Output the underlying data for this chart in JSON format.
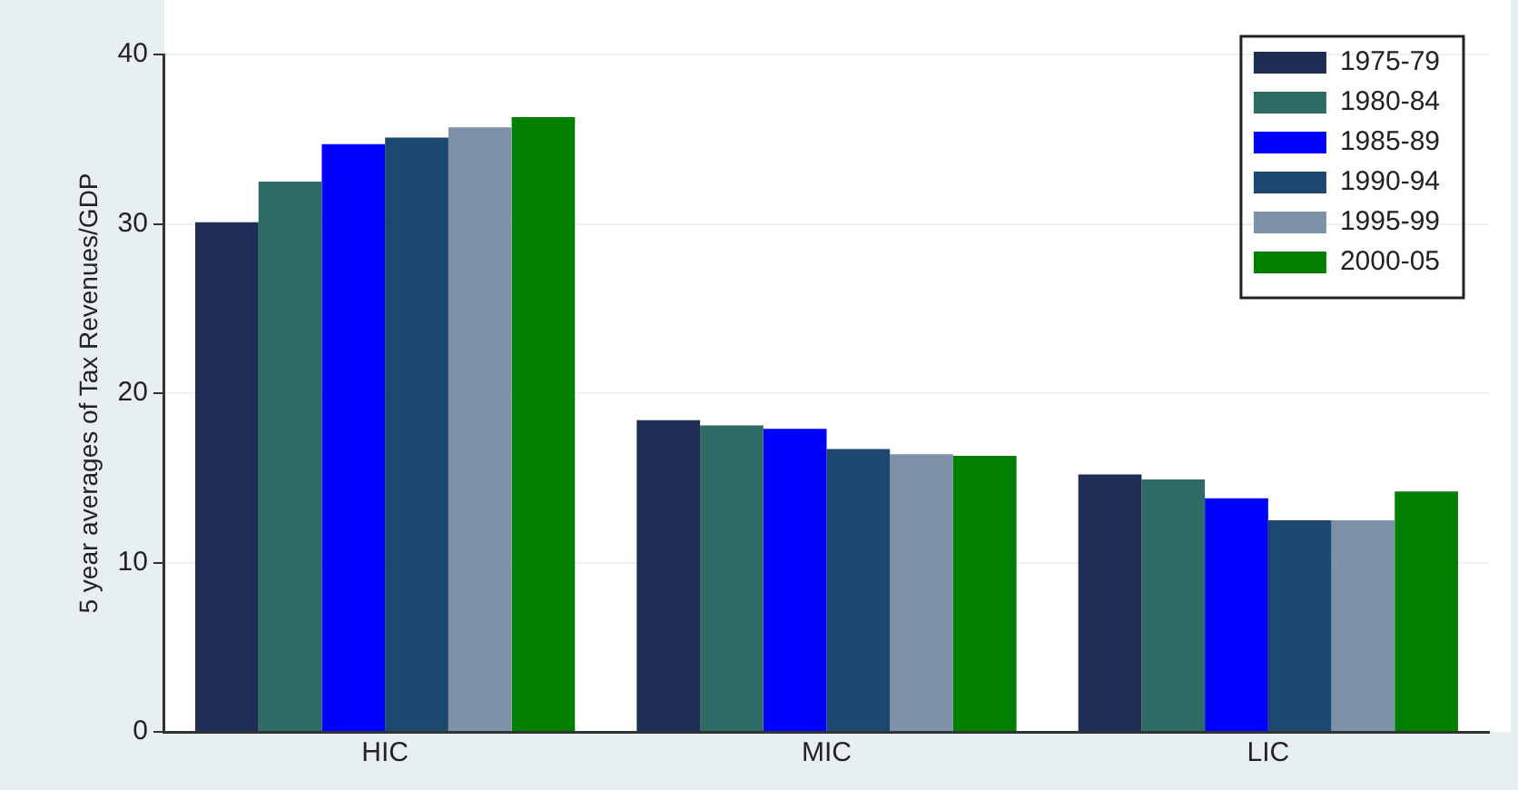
{
  "chart_data": {
    "type": "bar",
    "ylabel": "5 year averages of Tax Revenues/GDP",
    "categories": [
      "HIC",
      "MIC",
      "LIC"
    ],
    "series": [
      {
        "name": "1975-79",
        "color": "#1f2d54",
        "values": [
          30.1,
          18.4,
          15.2
        ]
      },
      {
        "name": "1980-84",
        "color": "#2e6b64",
        "values": [
          32.5,
          18.1,
          14.9
        ]
      },
      {
        "name": "1985-89",
        "color": "#0000ff",
        "values": [
          34.7,
          17.9,
          13.8
        ]
      },
      {
        "name": "1990-94",
        "color": "#1c476f",
        "values": [
          35.1,
          16.7,
          12.5
        ]
      },
      {
        "name": "1995-99",
        "color": "#7d92a9",
        "values": [
          35.7,
          16.4,
          12.5
        ]
      },
      {
        "name": "2000-05",
        "color": "#007f00",
        "values": [
          36.3,
          16.3,
          14.2
        ]
      }
    ],
    "ylim": [
      0,
      40
    ],
    "yticks": [
      0,
      10,
      20,
      30,
      40
    ],
    "grid": "y",
    "legend": "top right"
  }
}
